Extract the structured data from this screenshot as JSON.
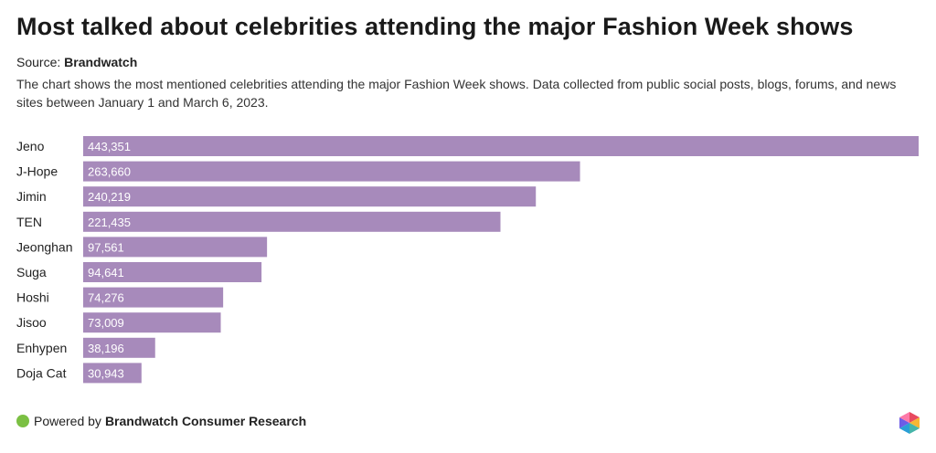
{
  "header": {
    "title": "Most talked about celebrities attending the major Fashion Week shows",
    "source_prefix": "Source:",
    "source_name": "Brandwatch",
    "description": "The chart shows the most mentioned celebrities attending the major Fashion Week shows. Data collected from public social posts, blogs, forums, and news sites between January 1 and March 6, 2023."
  },
  "footer": {
    "powered_prefix": "Powered by",
    "powered_name": "Brandwatch Consumer Research",
    "dot_color": "#7bc043",
    "logo_icon": "brandwatch-hexagon-logo-icon"
  },
  "colors": {
    "bar": "#a78abb",
    "value_text": "#ffffff"
  },
  "chart_data": {
    "type": "bar",
    "orientation": "horizontal",
    "categories": [
      "Jeno",
      "J-Hope",
      "Jimin",
      "TEN",
      "Jeonghan",
      "Suga",
      "Hoshi",
      "Jisoo",
      "Enhypen",
      "Doja Cat"
    ],
    "values": [
      443351,
      263660,
      240219,
      221435,
      97561,
      94641,
      74276,
      73009,
      38196,
      30943
    ],
    "value_labels": [
      "443,351",
      "263,660",
      "240,219",
      "221,435",
      "97,561",
      "94,641",
      "74,276",
      "73,009",
      "38,196",
      "30,943"
    ],
    "title": "",
    "xlabel": "",
    "ylabel": "",
    "xlim": [
      0,
      443351
    ],
    "grid": false,
    "legend": "none"
  }
}
